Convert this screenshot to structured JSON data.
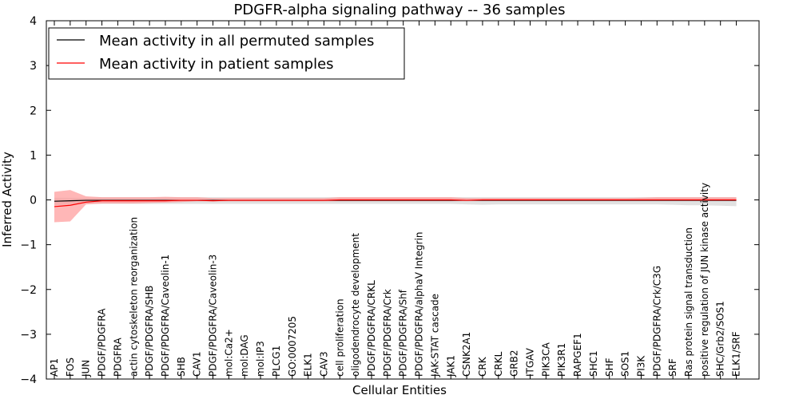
{
  "chart_data": {
    "type": "line",
    "title": "PDGFR-alpha signaling pathway -- 36 samples",
    "xlabel": "Cellular Entities",
    "ylabel": "Inferred Activity",
    "ylim": [
      -4,
      4
    ],
    "yticks": [
      "−4",
      "−3",
      "−2",
      "−1",
      "0",
      "1",
      "2",
      "3",
      "4"
    ],
    "ytick_values": [
      -4,
      -3,
      -2,
      -1,
      0,
      1,
      2,
      3,
      4
    ],
    "grid": false,
    "legend_position": "top-left",
    "categories": [
      "AP1",
      "FOS",
      "JUN",
      "PDGF/PDGFRA",
      "PDGFRA",
      "actin cytoskeleton reorganization",
      "PDGF/PDGFRA/SHB",
      "PDGF/PDGFRA/Caveolin-1",
      "SHB",
      "CAV1",
      "PDGF/PDGFRA/Caveolin-3",
      "mol:Ca2+",
      "mol:DAG",
      "mol:IP3",
      "PLCG1",
      "GO:0007205",
      "ELK1",
      "CAV3",
      "cell proliferation",
      "oligodendrocyte development",
      "PDGF/PDGFRA/CRKL",
      "PDGF/PDGFRA/Crk",
      "PDGF/PDGFRA/Shf",
      "PDGF/PDGFRA/alphaV Integrin",
      "JAK-STAT cascade",
      "JAK1",
      "CSNK2A1",
      "CRK",
      "CRKL",
      "GRB2",
      "ITGAV",
      "PIK3CA",
      "PIK3R1",
      "RAPGEF1",
      "SHC1",
      "SHF",
      "SOS1",
      "PI3K",
      "PDGF/PDGFRA/Crk/C3G",
      "SRF",
      "Ras protein signal transduction",
      "positive regulation of JUN kinase activity",
      "SHC/Grb2/SOS1",
      "ELK1/SRF"
    ],
    "series": [
      {
        "name": "Mean activity in all permuted samples",
        "color": "#000000",
        "band_color": "#c8c8c8",
        "values": [
          -0.03,
          -0.02,
          -0.01,
          -0.01,
          -0.01,
          -0.01,
          -0.01,
          -0.01,
          -0.01,
          -0.01,
          -0.01,
          -0.01,
          -0.01,
          -0.01,
          -0.01,
          -0.01,
          -0.01,
          -0.01,
          -0.01,
          -0.01,
          -0.01,
          -0.01,
          -0.01,
          -0.01,
          -0.01,
          -0.01,
          -0.01,
          -0.01,
          -0.01,
          -0.01,
          -0.01,
          -0.01,
          -0.01,
          -0.01,
          -0.01,
          -0.01,
          -0.01,
          -0.01,
          -0.01,
          -0.01,
          -0.01,
          -0.01,
          -0.01,
          -0.01
        ],
        "lower": [
          -0.12,
          -0.1,
          -0.09,
          -0.09,
          -0.09,
          -0.09,
          -0.09,
          -0.09,
          -0.09,
          -0.09,
          -0.09,
          -0.09,
          -0.09,
          -0.09,
          -0.09,
          -0.09,
          -0.09,
          -0.09,
          -0.09,
          -0.09,
          -0.09,
          -0.09,
          -0.09,
          -0.09,
          -0.09,
          -0.09,
          -0.1,
          -0.11,
          -0.1,
          -0.1,
          -0.1,
          -0.1,
          -0.1,
          -0.1,
          -0.1,
          -0.1,
          -0.1,
          -0.1,
          -0.1,
          -0.11,
          -0.12,
          -0.12,
          -0.13,
          -0.14
        ],
        "upper": [
          0.05,
          0.05,
          0.05,
          0.06,
          0.06,
          0.06,
          0.06,
          0.06,
          0.06,
          0.06,
          0.06,
          0.06,
          0.06,
          0.06,
          0.06,
          0.06,
          0.06,
          0.06,
          0.06,
          0.06,
          0.06,
          0.06,
          0.06,
          0.06,
          0.06,
          0.06,
          0.06,
          0.06,
          0.06,
          0.06,
          0.06,
          0.06,
          0.06,
          0.06,
          0.06,
          0.06,
          0.06,
          0.06,
          0.06,
          0.06,
          0.06,
          0.06,
          0.06,
          0.06
        ]
      },
      {
        "name": "Mean activity in patient samples",
        "color": "#ff0000",
        "band_color": "#ff9999",
        "values": [
          -0.15,
          -0.12,
          -0.05,
          -0.02,
          -0.02,
          -0.02,
          -0.02,
          -0.02,
          -0.01,
          -0.01,
          -0.02,
          -0.01,
          -0.01,
          -0.01,
          -0.01,
          -0.01,
          -0.01,
          -0.01,
          0.0,
          0.0,
          0.0,
          0.0,
          0.0,
          0.0,
          0.0,
          0.0,
          -0.01,
          0.0,
          0.0,
          0.0,
          0.0,
          0.0,
          0.0,
          0.0,
          0.0,
          0.0,
          0.0,
          0.0,
          0.0,
          0.0,
          0.0,
          0.0,
          0.0,
          0.0
        ],
        "lower": [
          -0.5,
          -0.48,
          -0.1,
          -0.08,
          -0.08,
          -0.08,
          -0.07,
          -0.06,
          -0.05,
          -0.03,
          -0.03,
          -0.03,
          -0.03,
          -0.03,
          -0.03,
          -0.03,
          -0.03,
          -0.03,
          -0.03,
          -0.03,
          -0.03,
          -0.03,
          -0.03,
          -0.03,
          -0.03,
          -0.03,
          -0.02,
          -0.02,
          -0.02,
          -0.02,
          -0.02,
          -0.02,
          -0.02,
          -0.02,
          -0.02,
          -0.02,
          -0.02,
          -0.02,
          -0.02,
          -0.02,
          -0.02,
          -0.02,
          -0.02,
          -0.02
        ],
        "upper": [
          0.18,
          0.22,
          0.08,
          0.06,
          0.06,
          0.06,
          0.06,
          0.07,
          0.06,
          0.06,
          0.04,
          0.04,
          0.04,
          0.04,
          0.04,
          0.04,
          0.04,
          0.04,
          0.06,
          0.06,
          0.06,
          0.06,
          0.06,
          0.06,
          0.06,
          0.06,
          0.04,
          0.04,
          0.04,
          0.04,
          0.04,
          0.04,
          0.04,
          0.04,
          0.04,
          0.04,
          0.04,
          0.05,
          0.06,
          0.06,
          0.06,
          0.06,
          0.06,
          0.06
        ]
      }
    ]
  }
}
